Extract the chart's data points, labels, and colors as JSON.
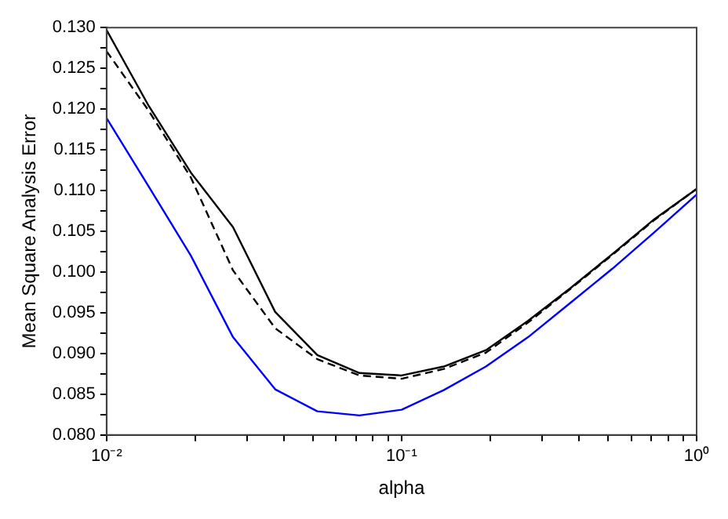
{
  "chart_data": {
    "type": "line",
    "xlabel": "alpha",
    "ylabel": "Mean Square Analysis Error",
    "x": [
      0.01,
      0.01389,
      0.01931,
      0.02683,
      0.03728,
      0.05179,
      0.07197,
      0.1,
      0.1389,
      0.1931,
      0.2683,
      0.3728,
      0.5179,
      0.7197,
      1
    ],
    "series": [
      {
        "color": "#000000",
        "line_style": "solid",
        "values": [
          0.1297,
          0.1204,
          0.1122,
          0.1055,
          0.0951,
          0.0898,
          0.0876,
          0.0873,
          0.0884,
          0.0904,
          0.094,
          0.098,
          0.1022,
          0.1065,
          0.1102
        ]
      },
      {
        "color": "#000000",
        "line_style": "dashed",
        "values": [
          0.1271,
          0.1198,
          0.1116,
          0.1002,
          0.0931,
          0.0893,
          0.0873,
          0.0869,
          0.0881,
          0.0901,
          0.0938,
          0.0979,
          0.1021,
          0.1064,
          0.1102
        ]
      },
      {
        "color": "#0000ff",
        "line_style": "solid",
        "values": [
          0.1189,
          0.1105,
          0.102,
          0.092,
          0.0856,
          0.0829,
          0.0824,
          0.0831,
          0.0855,
          0.0884,
          0.092,
          0.0962,
          0.1004,
          0.1049,
          0.1095
        ]
      }
    ],
    "log": "x",
    "xlim": [
      0.01,
      1
    ],
    "ylim": [
      0.08,
      0.13
    ],
    "xticks": [
      {
        "value": 0.01,
        "label": "10⁻²"
      },
      {
        "value": 0.02,
        "label": null
      },
      {
        "value": 0.03,
        "label": null
      },
      {
        "value": 0.04,
        "label": null
      },
      {
        "value": 0.05,
        "label": null
      },
      {
        "value": 0.06,
        "label": null
      },
      {
        "value": 0.07,
        "label": null
      },
      {
        "value": 0.08,
        "label": null
      },
      {
        "value": 0.09,
        "label": null
      },
      {
        "value": 0.1,
        "label": "10⁻¹"
      },
      {
        "value": 0.2,
        "label": null
      },
      {
        "value": 0.3,
        "label": null
      },
      {
        "value": 0.4,
        "label": null
      },
      {
        "value": 0.5,
        "label": null
      },
      {
        "value": 0.6,
        "label": null
      },
      {
        "value": 0.7,
        "label": null
      },
      {
        "value": 0.8,
        "label": null
      },
      {
        "value": 0.9,
        "label": null
      },
      {
        "value": 1,
        "label": "10⁰"
      }
    ],
    "yticks": [
      {
        "value": 0.08,
        "label": "0.080"
      },
      {
        "value": 0.0825,
        "label": null
      },
      {
        "value": 0.085,
        "label": "0.085"
      },
      {
        "value": 0.0875,
        "label": null
      },
      {
        "value": 0.09,
        "label": "0.090"
      },
      {
        "value": 0.0925,
        "label": null
      },
      {
        "value": 0.095,
        "label": "0.095"
      },
      {
        "value": 0.0975,
        "label": null
      },
      {
        "value": 0.1,
        "label": "0.100"
      },
      {
        "value": 0.1025,
        "label": null
      },
      {
        "value": 0.105,
        "label": "0.105"
      },
      {
        "value": 0.1075,
        "label": null
      },
      {
        "value": 0.11,
        "label": "0.110"
      },
      {
        "value": 0.1125,
        "label": null
      },
      {
        "value": 0.115,
        "label": "0.115"
      },
      {
        "value": 0.1175,
        "label": null
      },
      {
        "value": 0.12,
        "label": "0.120"
      },
      {
        "value": 0.1225,
        "label": null
      },
      {
        "value": 0.125,
        "label": "0.125"
      },
      {
        "value": 0.1275,
        "label": null
      },
      {
        "value": 0.13,
        "label": "0.130"
      }
    ],
    "grid": false,
    "legend": false,
    "marker": "none"
  }
}
